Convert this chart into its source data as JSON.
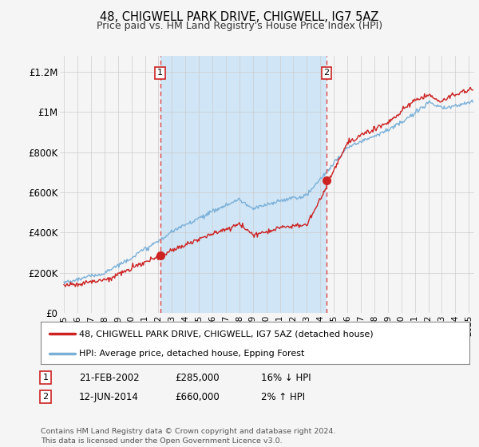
{
  "title": "48, CHIGWELL PARK DRIVE, CHIGWELL, IG7 5AZ",
  "subtitle": "Price paid vs. HM Land Registry's House Price Index (HPI)",
  "title_fontsize": 10.5,
  "subtitle_fontsize": 9,
  "bg_color": "#dce8f5",
  "plot_bg_color": "#f5f5f5",
  "outer_bg": "#f5f5f5",
  "ylabel_ticks": [
    "£0",
    "£200K",
    "£400K",
    "£600K",
    "£800K",
    "£1M",
    "£1.2M"
  ],
  "ytick_values": [
    0,
    200000,
    400000,
    600000,
    800000,
    1000000,
    1200000
  ],
  "ylim": [
    0,
    1280000
  ],
  "xlim_start": 1994.7,
  "xlim_end": 2025.4,
  "transaction1_x": 2002.13,
  "transaction1_y": 285000,
  "transaction2_x": 2014.45,
  "transaction2_y": 660000,
  "vline1_x": 2002.13,
  "vline2_x": 2014.45,
  "legend_line1_label": "48, CHIGWELL PARK DRIVE, CHIGWELL, IG7 5AZ (detached house)",
  "legend_line2_label": "HPI: Average price, detached house, Epping Forest",
  "table_row1": [
    "1",
    "21-FEB-2002",
    "£285,000",
    "16% ↓ HPI"
  ],
  "table_row2": [
    "2",
    "12-JUN-2014",
    "£660,000",
    "2% ↑ HPI"
  ],
  "footer": "Contains HM Land Registry data © Crown copyright and database right 2024.\nThis data is licensed under the Open Government Licence v3.0.",
  "line_color_red": "#cc2222",
  "line_color_blue": "#7ab0d8",
  "vline_color": "#dd4444",
  "shade_color": "#d0e5f5",
  "grid_color": "#cccccc"
}
